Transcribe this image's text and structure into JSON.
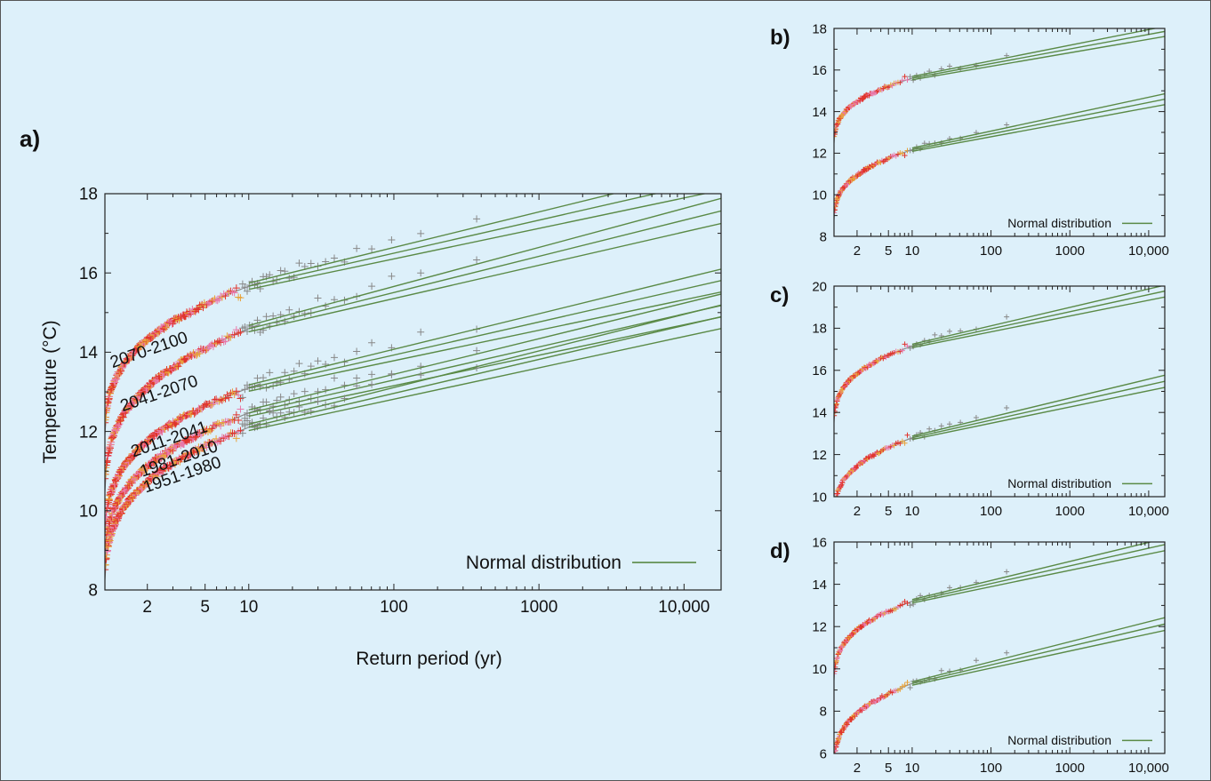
{
  "background_color": "#ddf0fa",
  "colors": {
    "fit_line": "#5a8a46",
    "fit_curve": "#8a8a8a",
    "marker_sim": "#e0342c",
    "marker_pink": "#e878a8",
    "marker_orange": "#e8a23a",
    "marker_obs": "#888888"
  },
  "chart_data": [
    {
      "panel": "a)",
      "type": "scatter",
      "xscale": "log",
      "xticks": [
        "2",
        "5",
        "10",
        "100",
        "1000",
        "10,000"
      ],
      "xtick_values": [
        2,
        5,
        10,
        100,
        1000,
        10000
      ],
      "yticks": [
        "8",
        "10",
        "12",
        "14",
        "16",
        "18"
      ],
      "ylim": [
        8,
        18
      ],
      "xlabel": "Return period (yr)",
      "ylabel": "Temperature (°C)",
      "legend": "Normal distribution",
      "legend_position": "bottom-right",
      "series": [
        {
          "name": "2070-2100",
          "mu": 14.32,
          "sigma": 1.05,
          "label_at": [
            1.15,
            13.6
          ]
        },
        {
          "name": "2041-2070",
          "mu": 13.12,
          "sigma": 1.15,
          "label_at": [
            1.35,
            12.5
          ]
        },
        {
          "name": "2011-2041",
          "mu": 11.75,
          "sigma": 1.05,
          "label_at": [
            1.6,
            11.35
          ]
        },
        {
          "name": "1981-2010",
          "mu": 11.12,
          "sigma": 1.05,
          "label_at": [
            1.85,
            10.85
          ]
        },
        {
          "name": "1951-1980",
          "mu": 10.72,
          "sigma": 1.08,
          "label_at": [
            1.95,
            10.45
          ]
        }
      ]
    },
    {
      "panel": "b)",
      "type": "scatter",
      "xscale": "log",
      "xticks": [
        "2",
        "5",
        "10",
        "100",
        "1000",
        "10,000"
      ],
      "xtick_values": [
        2,
        5,
        10,
        100,
        1000,
        10000
      ],
      "yticks": [
        "8",
        "10",
        "12",
        "14",
        "16",
        "18"
      ],
      "ylim": [
        8,
        18
      ],
      "legend": "Normal distribution",
      "legend_position": "bottom-right",
      "series": [
        {
          "mu": 14.48,
          "sigma": 0.88
        },
        {
          "mu": 10.95,
          "sigma": 0.95
        }
      ]
    },
    {
      "panel": "c)",
      "type": "scatter",
      "xscale": "log",
      "xticks": [
        "2",
        "5",
        "10",
        "100",
        "1000",
        "10,000"
      ],
      "xtick_values": [
        2,
        5,
        10,
        100,
        1000,
        10000
      ],
      "yticks": [
        "10",
        "12",
        "14",
        "16",
        "18",
        "20"
      ],
      "ylim": [
        10,
        20
      ],
      "legend": "Normal distribution",
      "legend_position": "bottom-right",
      "series": [
        {
          "mu": 15.85,
          "sigma": 1.02
        },
        {
          "mu": 11.45,
          "sigma": 1.05
        }
      ]
    },
    {
      "panel": "d)",
      "type": "scatter",
      "xscale": "log",
      "xticks": [
        "2",
        "5",
        "10",
        "100",
        "1000",
        "10,000"
      ],
      "xtick_values": [
        2,
        5,
        10,
        100,
        1000,
        10000
      ],
      "yticks": [
        "6",
        "8",
        "10",
        "12",
        "14",
        "16"
      ],
      "ylim": [
        6,
        16
      ],
      "legend": "Normal distribution",
      "legend_position": "bottom-right",
      "series": [
        {
          "mu": 11.85,
          "sigma": 1.05
        },
        {
          "mu": 7.9,
          "sigma": 1.1
        }
      ]
    }
  ]
}
